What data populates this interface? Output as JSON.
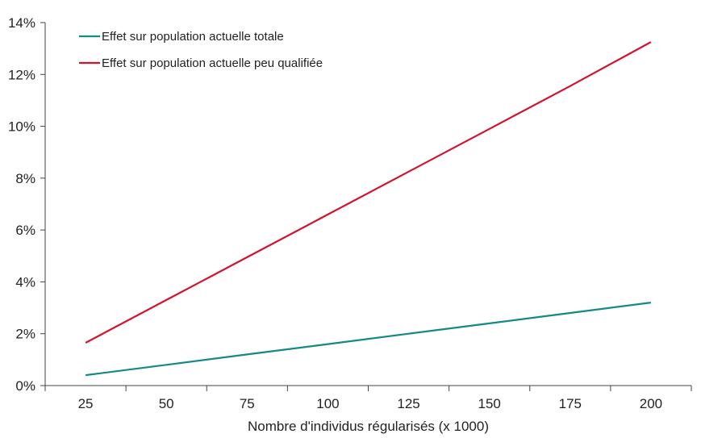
{
  "chart_data": {
    "type": "line",
    "title": "",
    "xlabel": "Nombre d'individus régularisés (x 1000)",
    "ylabel": "",
    "categories": [
      "25",
      "50",
      "75",
      "100",
      "125",
      "150",
      "175",
      "200"
    ],
    "y_ticks": [
      "0%",
      "2%",
      "4%",
      "6%",
      "8%",
      "10%",
      "12%",
      "14%"
    ],
    "ylim": [
      0,
      14
    ],
    "y_unit": "%",
    "grid": false,
    "legend_position": "top-left",
    "series": [
      {
        "name": "Effet sur population actuelle totale",
        "color": "#138a84",
        "values": [
          0.4,
          0.8,
          1.2,
          1.6,
          2.0,
          2.4,
          2.8,
          3.2
        ]
      },
      {
        "name": "Effet sur population actuelle peu qualifiée",
        "color": "#d3122e",
        "values": [
          1.65,
          3.3,
          4.95,
          6.6,
          8.25,
          9.9,
          11.55,
          13.25
        ]
      }
    ]
  }
}
